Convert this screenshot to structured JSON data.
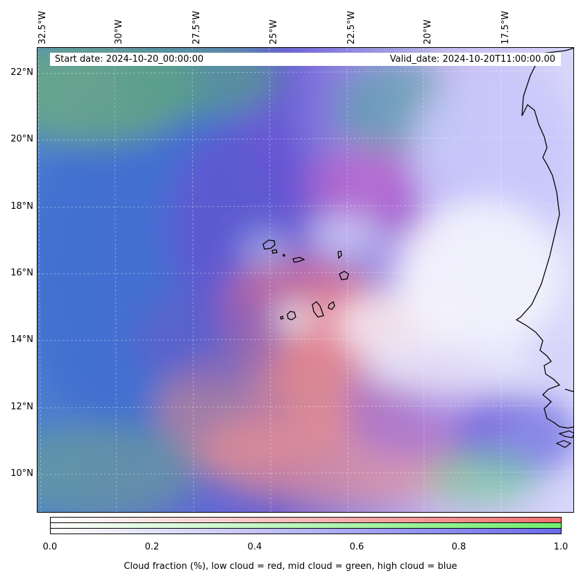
{
  "map": {
    "longitude_labels": [
      "32.5°W",
      "30°W",
      "27.5°W",
      "25°W",
      "22.5°W",
      "20°W",
      "17.5°W"
    ],
    "latitude_labels": [
      "22°N",
      "20°N",
      "18°N",
      "16°N",
      "14°N",
      "12°N",
      "10°N"
    ],
    "start_date": "Start date: 2024-10-20_00:00:00",
    "valid_date": "Valid_date: 2024-10-20T11:00:00.00",
    "colors": {
      "low_cloud": "#f07878",
      "mid_cloud": "#78ee78",
      "high_cloud": "#7878ee",
      "ocean_base": "#3f6fd2",
      "coastline": "#000000"
    }
  },
  "colorbar": {
    "ticks": [
      "0.0",
      "0.2",
      "0.4",
      "0.6",
      "0.8",
      "1.0"
    ],
    "title": "Cloud fraction (%), low cloud = red, mid cloud = green, high cloud = blue"
  }
}
